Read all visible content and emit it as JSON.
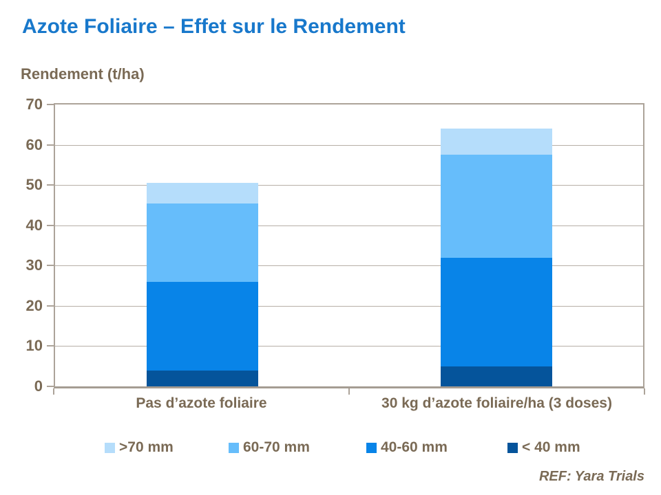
{
  "header": {
    "title": "Azote Foliaire – Effet sur le Rendement"
  },
  "chart_data": {
    "type": "bar",
    "stacked": true,
    "title": "Azote Foliaire – Effet sur le Rendement",
    "axis_title": "Rendement (t/ha)",
    "xlabel": "",
    "ylabel": "Rendement (t/ha)",
    "categories": [
      "Pas d’azote foliaire",
      "30 kg d’azote foliaire/ha (3 doses)"
    ],
    "series": [
      {
        "name": ">70 mm",
        "color": "#b5ddfb",
        "values": [
          5,
          6.5
        ]
      },
      {
        "name": "60-70 mm",
        "color": "#66bdfb",
        "values": [
          19.5,
          25.5
        ]
      },
      {
        "name": "40-60 mm",
        "color": "#0884e8",
        "values": [
          22,
          27
        ]
      },
      {
        "name": "< 40 mm",
        "color": "#05549b",
        "values": [
          4,
          5
        ]
      }
    ],
    "totals": [
      50.5,
      64
    ],
    "ylim": [
      0,
      70
    ],
    "yticks": [
      0,
      10,
      20,
      30,
      40,
      50,
      60,
      70
    ],
    "grid": "horizontal",
    "legend_position": "bottom"
  },
  "footer": {
    "ref": "REF: Yara Trials"
  },
  "colors": {
    "title_blue": "#1878cb",
    "text_brown": "#7a6a55",
    "axis_line": "#aca399",
    "gridline": "#b6aea6",
    "background": "#ffffff"
  }
}
